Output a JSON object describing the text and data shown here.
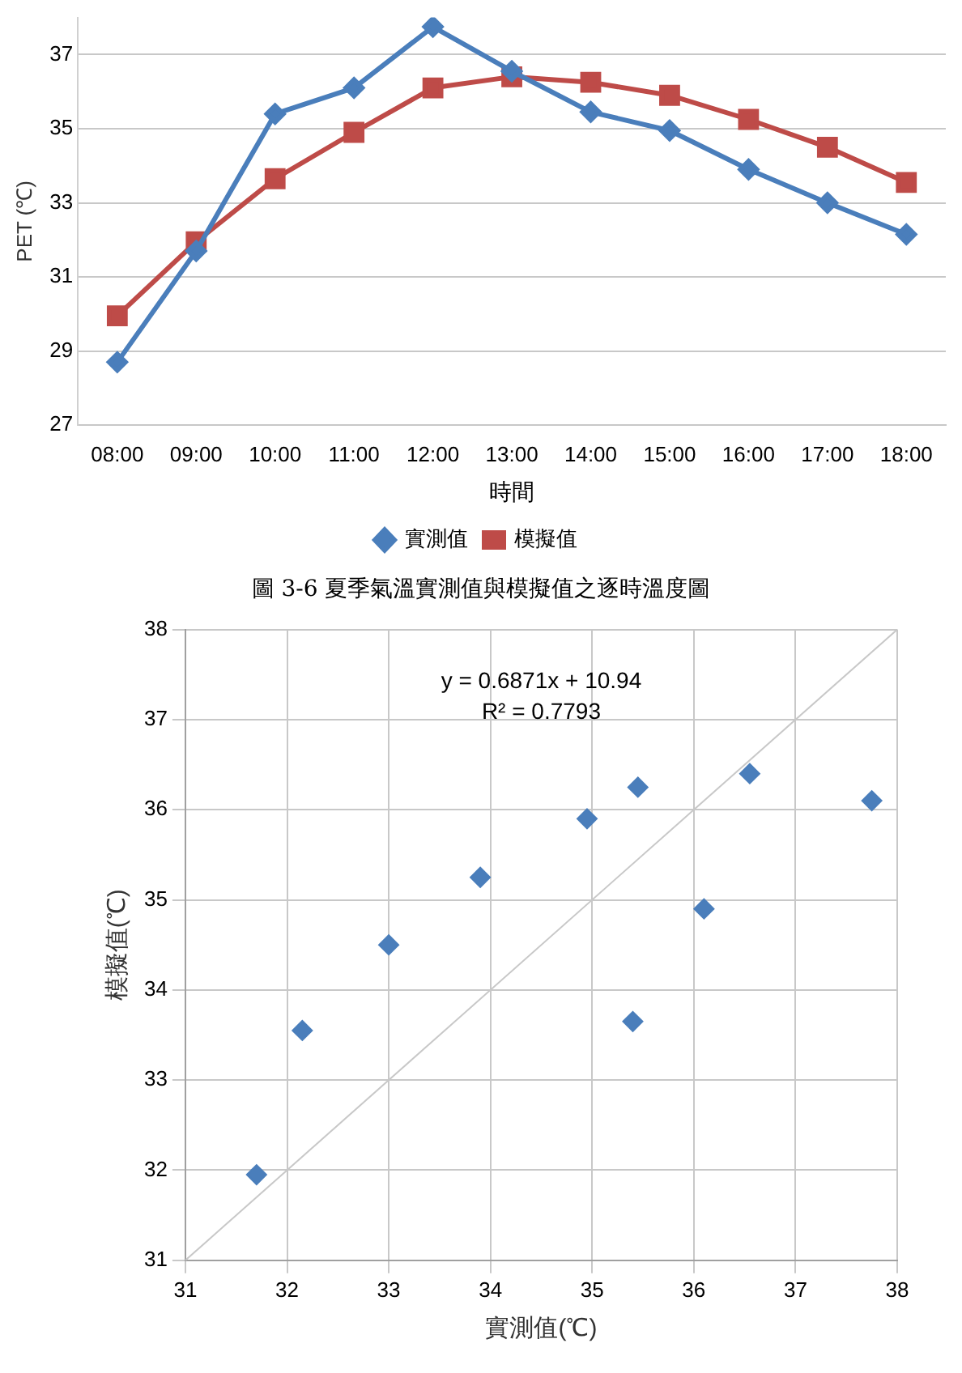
{
  "chart_data": [
    {
      "type": "line",
      "ylabel": "PET (℃)",
      "xlabel": "時間",
      "categories": [
        "08:00",
        "09:00",
        "10:00",
        "11:00",
        "12:00",
        "13:00",
        "14:00",
        "15:00",
        "16:00",
        "17:00",
        "18:00"
      ],
      "series": [
        {
          "name": "實測值",
          "color": "#4a7ebb",
          "marker": "diamond",
          "values": [
            28.7,
            31.7,
            35.4,
            36.1,
            37.75,
            36.55,
            35.45,
            34.95,
            33.9,
            33.0,
            32.15
          ]
        },
        {
          "name": "模擬值",
          "color": "#be4b48",
          "marker": "square",
          "values": [
            29.95,
            31.95,
            33.65,
            34.9,
            36.1,
            36.4,
            36.25,
            35.9,
            35.25,
            34.5,
            33.55
          ]
        }
      ],
      "ylim": [
        27,
        38
      ],
      "yticks": [
        27,
        29,
        31,
        33,
        35,
        37
      ],
      "grid": "y",
      "legend": "bottom",
      "line_style": "solid",
      "annotations": [
        "圖 3-6 夏季氣溫實測值與模擬值之逐時溫度圖"
      ]
    },
    {
      "type": "scatter",
      "xlabel": "實測值(℃)",
      "ylabel": "模擬值(℃)",
      "series": [
        {
          "color": "#4a7ebb",
          "marker": "diamond",
          "x": [
            31.7,
            35.4,
            36.1,
            37.75,
            36.55,
            35.45,
            34.95,
            33.9,
            33.0,
            32.15
          ],
          "values": [
            31.95,
            33.65,
            34.9,
            36.1,
            36.4,
            36.25,
            35.9,
            35.25,
            34.5,
            33.55
          ]
        },
        {
          "type": "line",
          "color": "#c8c8c8",
          "marker": "none",
          "x": [
            31,
            38
          ],
          "values": [
            31,
            38
          ]
        }
      ],
      "xlim": [
        31,
        38
      ],
      "xticks": [
        31,
        32,
        33,
        34,
        35,
        36,
        37,
        38
      ],
      "ylim": [
        31,
        38
      ],
      "yticks": [
        31,
        32,
        33,
        34,
        35,
        36,
        37,
        38
      ],
      "grid": true,
      "legend": false,
      "annotations": [
        "y = 0.6871x + 10.94",
        "R² = 0.7793"
      ]
    }
  ]
}
